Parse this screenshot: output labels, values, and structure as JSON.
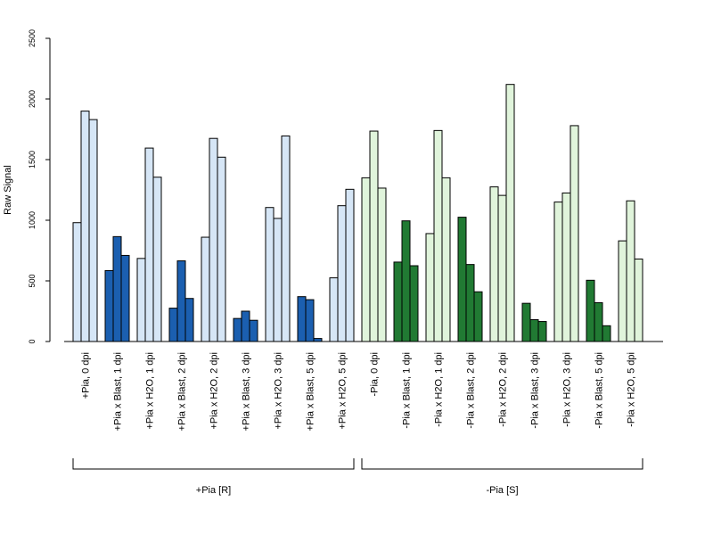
{
  "chart_data": {
    "type": "bar",
    "ylabel": "Raw Signal",
    "ylim": [
      0,
      2500
    ],
    "yticks": [
      0,
      500,
      1000,
      1500,
      2000,
      2500
    ],
    "grid": false,
    "bars_per_category": 3,
    "colors": {
      "blue_light": "#d6e6f6",
      "blue_dark": "#1b5fb0",
      "green_light": "#e0f4db",
      "green_dark": "#217a33"
    },
    "categories": [
      {
        "label": "+Pia, 0 dpi",
        "values": [
          980,
          1900,
          1830
        ],
        "color": "#d6e6f6"
      },
      {
        "label": "+Pia x Blast, 1 dpi",
        "values": [
          585,
          865,
          710
        ],
        "color": "#1b5fb0"
      },
      {
        "label": "+Pia x H2O, 1 dpi",
        "values": [
          685,
          1595,
          1355
        ],
        "color": "#d6e6f6"
      },
      {
        "label": "+Pia x Blast, 2 dpi",
        "values": [
          275,
          665,
          355
        ],
        "color": "#1b5fb0"
      },
      {
        "label": "+Pia x H2O, 2 dpi",
        "values": [
          860,
          1675,
          1520
        ],
        "color": "#d6e6f6"
      },
      {
        "label": "+Pia x Blast, 3 dpi",
        "values": [
          190,
          250,
          175
        ],
        "color": "#1b5fb0"
      },
      {
        "label": "+Pia x H2O, 3 dpi",
        "values": [
          1105,
          1015,
          1695
        ],
        "color": "#d6e6f6"
      },
      {
        "label": "+Pia x Blast, 5 dpi",
        "values": [
          370,
          345,
          25
        ],
        "color": "#1b5fb0"
      },
      {
        "label": "+Pia x H2O, 5 dpi",
        "values": [
          525,
          1120,
          1255
        ],
        "color": "#d6e6f6"
      },
      {
        "label": "-Pia, 0 dpi",
        "values": [
          1350,
          1735,
          1265
        ],
        "color": "#e0f4db"
      },
      {
        "label": "-Pia x Blast, 1 dpi",
        "values": [
          655,
          995,
          625
        ],
        "color": "#217a33"
      },
      {
        "label": "-Pia x H2O, 1 dpi",
        "values": [
          890,
          1740,
          1350
        ],
        "color": "#e0f4db"
      },
      {
        "label": "-Pia x Blast, 2 dpi",
        "values": [
          1025,
          635,
          410
        ],
        "color": "#217a33"
      },
      {
        "label": "-Pia x H2O, 2 dpi",
        "values": [
          1275,
          1205,
          2120
        ],
        "color": "#e0f4db"
      },
      {
        "label": "-Pia x Blast, 3 dpi",
        "values": [
          315,
          180,
          165
        ],
        "color": "#217a33"
      },
      {
        "label": "-Pia x H2O, 3 dpi",
        "values": [
          1150,
          1225,
          1780
        ],
        "color": "#e0f4db"
      },
      {
        "label": "-Pia x Blast, 5 dpi",
        "values": [
          505,
          320,
          130
        ],
        "color": "#217a33"
      },
      {
        "label": "-Pia x H2O, 5 dpi",
        "values": [
          830,
          1160,
          680
        ],
        "color": "#e0f4db"
      }
    ],
    "groups": [
      {
        "label": "+Pia [R]",
        "first": 0,
        "last": 8
      },
      {
        "label": "-Pia [S]",
        "first": 9,
        "last": 17
      }
    ]
  }
}
